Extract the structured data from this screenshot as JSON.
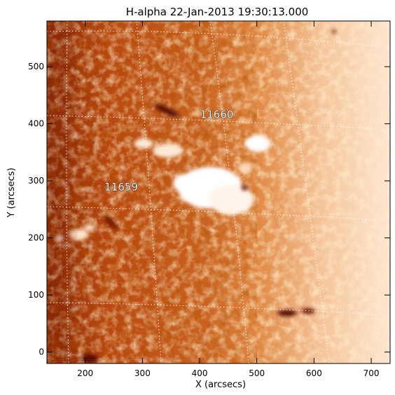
{
  "title": "H-alpha 22-Jan-2013 19:30:13.000",
  "xlabel": "X (arcsecs)",
  "ylabel": "Y (arcsecs)",
  "x_ticks": [
    "200",
    "300",
    "400",
    "500",
    "600",
    "700"
  ],
  "y_ticks": [
    "0",
    "100",
    "200",
    "300",
    "400",
    "500"
  ],
  "x_tick_values": [
    200,
    300,
    400,
    500,
    600,
    700
  ],
  "y_tick_values": [
    0,
    100,
    200,
    300,
    400,
    500
  ],
  "x_range": [
    133,
    733
  ],
  "y_range": [
    -20,
    580
  ],
  "region_labels": [
    {
      "text": "11660",
      "x": 430,
      "y": 410
    },
    {
      "text": "11659",
      "x": 263,
      "y": 283
    }
  ],
  "colors": {
    "dark": "#7a1a00",
    "mid": "#c85a1a",
    "light": "#f0a060",
    "bright": "#ffffff",
    "grid": "#ffffff"
  }
}
